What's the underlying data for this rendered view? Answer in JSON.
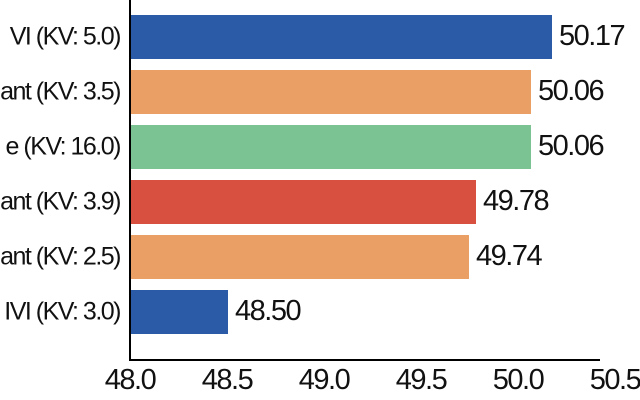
{
  "chart_data": {
    "type": "bar",
    "orientation": "horizontal",
    "title": "",
    "xlabel": "",
    "ylabel": "",
    "xlim": [
      48.0,
      50.5
    ],
    "grid": false,
    "legend": "none",
    "categories": [
      "VI (KV: 5.0)",
      "ant (KV: 3.5)",
      "e (KV: 16.0)",
      "ant (KV: 3.9)",
      "ant (KV: 2.5)",
      "IVI (KV: 3.0)"
    ],
    "values": [
      50.17,
      50.06,
      50.06,
      49.78,
      49.74,
      48.5
    ],
    "value_labels": [
      "50.17",
      "50.06",
      "50.06",
      "49.78",
      "49.74",
      "48.50"
    ],
    "bar_colors": [
      "#2b5ba6",
      "#eaa065",
      "#7cc394",
      "#d8503f",
      "#eaa065",
      "#2b5ba6"
    ],
    "x_tick_labels": [
      "48.0",
      "48.5",
      "49.0",
      "49.5",
      "50.0",
      "50.5"
    ],
    "x_tick_values": [
      48.0,
      48.5,
      49.0,
      49.5,
      50.0,
      50.5
    ],
    "colors": {
      "axis": "#000000",
      "text": "#111111",
      "background": "#ffffff"
    }
  }
}
